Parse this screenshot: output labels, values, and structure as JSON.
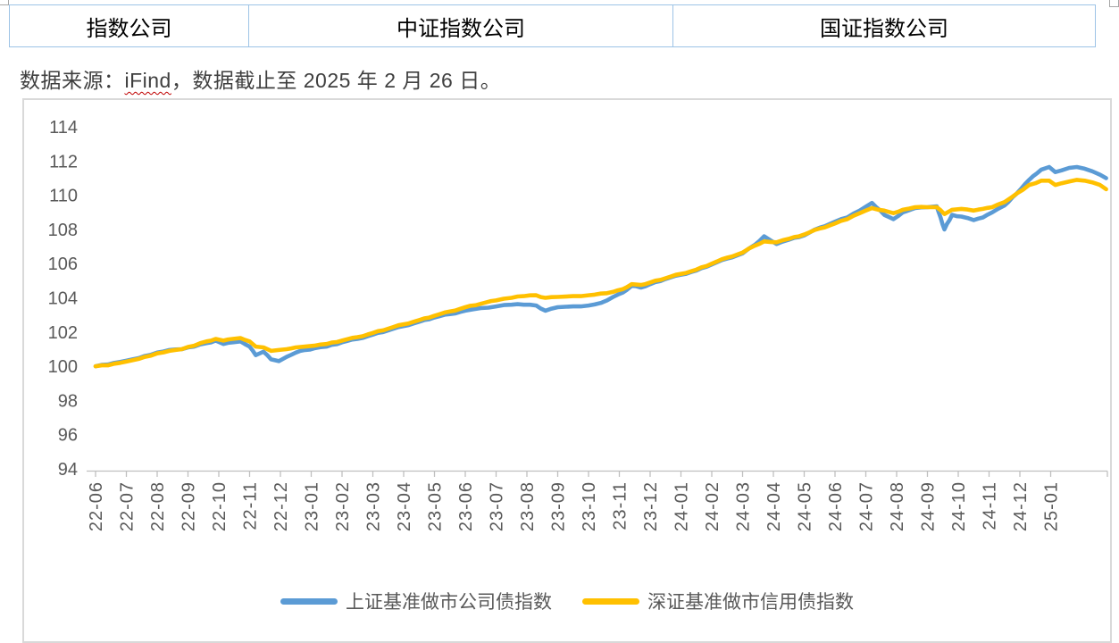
{
  "table": {
    "border_color": "#9DC3E6",
    "cells": [
      {
        "label": "指数公司"
      },
      {
        "label": "中证指数公司"
      },
      {
        "label": "国证指数公司"
      }
    ]
  },
  "source_note": {
    "prefix": "数据来源：",
    "highlight": "iFind",
    "suffix": "，数据截止至 2025 年 2 月 26 日。"
  },
  "chart_data": {
    "type": "line",
    "title": "",
    "xlabel": "",
    "ylabel": "",
    "ylim": [
      94,
      114
    ],
    "y_ticks": [
      94,
      96,
      98,
      100,
      102,
      104,
      106,
      108,
      110,
      112,
      114
    ],
    "x_tick_labels": [
      "22-06",
      "22-07",
      "22-08",
      "22-09",
      "22-10",
      "22-11",
      "22-12",
      "23-01",
      "23-02",
      "23-03",
      "23-04",
      "23-05",
      "23-06",
      "23-07",
      "23-08",
      "23-09",
      "23-10",
      "23-11",
      "23-12",
      "24-01",
      "24-02",
      "24-03",
      "24-04",
      "24-05",
      "24-06",
      "24-07",
      "24-08",
      "24-09",
      "24-10",
      "24-11",
      "24-12",
      "25-01"
    ],
    "grid": false,
    "legend_position": "bottom",
    "axis_color": "#BFBFBF",
    "tick_label_color": "#595959",
    "series": [
      {
        "name": "上证基准做市公司债指数",
        "color": "#5B9BD5",
        "points": [
          [
            0,
            100.0
          ],
          [
            0.4,
            100.1
          ],
          [
            0.8,
            100.25
          ],
          [
            1.2,
            100.4
          ],
          [
            1.6,
            100.6
          ],
          [
            2.0,
            100.8
          ],
          [
            2.4,
            100.95
          ],
          [
            2.8,
            101.0
          ],
          [
            3.2,
            101.15
          ],
          [
            3.6,
            101.35
          ],
          [
            3.9,
            101.5
          ],
          [
            4.15,
            101.3
          ],
          [
            4.45,
            101.4
          ],
          [
            4.7,
            101.45
          ],
          [
            5.0,
            101.15
          ],
          [
            5.2,
            100.65
          ],
          [
            5.45,
            100.85
          ],
          [
            5.7,
            100.4
          ],
          [
            5.95,
            100.3
          ],
          [
            6.2,
            100.55
          ],
          [
            6.5,
            100.8
          ],
          [
            6.8,
            100.95
          ],
          [
            7.1,
            101.05
          ],
          [
            7.5,
            101.15
          ],
          [
            8.0,
            101.4
          ],
          [
            8.5,
            101.6
          ],
          [
            9.0,
            101.85
          ],
          [
            9.5,
            102.1
          ],
          [
            10.0,
            102.35
          ],
          [
            10.5,
            102.6
          ],
          [
            11.0,
            102.85
          ],
          [
            11.5,
            103.05
          ],
          [
            12.0,
            103.25
          ],
          [
            12.5,
            103.4
          ],
          [
            13.0,
            103.5
          ],
          [
            13.5,
            103.6
          ],
          [
            13.9,
            103.6
          ],
          [
            14.3,
            103.55
          ],
          [
            14.6,
            103.25
          ],
          [
            15.0,
            103.45
          ],
          [
            15.5,
            103.5
          ],
          [
            16.0,
            103.55
          ],
          [
            16.4,
            103.7
          ],
          [
            16.8,
            104.05
          ],
          [
            17.1,
            104.3
          ],
          [
            17.4,
            104.7
          ],
          [
            17.7,
            104.6
          ],
          [
            18.0,
            104.8
          ],
          [
            18.5,
            105.1
          ],
          [
            19.0,
            105.35
          ],
          [
            19.5,
            105.6
          ],
          [
            20.0,
            105.95
          ],
          [
            20.5,
            106.3
          ],
          [
            21.0,
            106.6
          ],
          [
            21.4,
            107.1
          ],
          [
            21.7,
            107.6
          ],
          [
            22.1,
            107.15
          ],
          [
            22.5,
            107.4
          ],
          [
            23.0,
            107.65
          ],
          [
            23.5,
            108.1
          ],
          [
            24.0,
            108.45
          ],
          [
            24.4,
            108.7
          ],
          [
            24.8,
            109.1
          ],
          [
            25.2,
            109.55
          ],
          [
            25.6,
            108.85
          ],
          [
            25.9,
            108.6
          ],
          [
            26.2,
            109.0
          ],
          [
            26.6,
            109.25
          ],
          [
            27.0,
            109.3
          ],
          [
            27.3,
            109.35
          ],
          [
            27.55,
            108.0
          ],
          [
            27.8,
            108.85
          ],
          [
            28.1,
            108.75
          ],
          [
            28.5,
            108.55
          ],
          [
            28.8,
            108.7
          ],
          [
            29.1,
            109.0
          ],
          [
            29.5,
            109.4
          ],
          [
            29.9,
            110.1
          ],
          [
            30.3,
            110.9
          ],
          [
            30.7,
            111.5
          ],
          [
            30.95,
            111.65
          ],
          [
            31.15,
            111.35
          ],
          [
            31.35,
            111.45
          ],
          [
            31.6,
            111.6
          ],
          [
            31.85,
            111.65
          ],
          [
            32.1,
            111.55
          ],
          [
            32.35,
            111.4
          ],
          [
            32.6,
            111.2
          ],
          [
            32.8,
            111.0
          ]
        ]
      },
      {
        "name": "深证基准做市信用债指数",
        "color": "#FFC000",
        "points": [
          [
            0,
            100.0
          ],
          [
            0.4,
            100.05
          ],
          [
            0.8,
            100.2
          ],
          [
            1.2,
            100.35
          ],
          [
            1.6,
            100.55
          ],
          [
            2.0,
            100.75
          ],
          [
            2.4,
            100.9
          ],
          [
            2.8,
            101.0
          ],
          [
            3.2,
            101.2
          ],
          [
            3.6,
            101.45
          ],
          [
            3.9,
            101.6
          ],
          [
            4.15,
            101.5
          ],
          [
            4.45,
            101.6
          ],
          [
            4.7,
            101.65
          ],
          [
            5.0,
            101.45
          ],
          [
            5.2,
            101.15
          ],
          [
            5.45,
            101.1
          ],
          [
            5.7,
            100.9
          ],
          [
            5.95,
            100.95
          ],
          [
            6.2,
            101.0
          ],
          [
            6.5,
            101.1
          ],
          [
            6.8,
            101.15
          ],
          [
            7.1,
            101.2
          ],
          [
            7.5,
            101.3
          ],
          [
            8.0,
            101.5
          ],
          [
            8.5,
            101.7
          ],
          [
            9.0,
            101.95
          ],
          [
            9.5,
            102.2
          ],
          [
            10.0,
            102.45
          ],
          [
            10.5,
            102.7
          ],
          [
            11.0,
            102.95
          ],
          [
            11.5,
            103.2
          ],
          [
            12.0,
            103.45
          ],
          [
            12.5,
            103.65
          ],
          [
            13.0,
            103.85
          ],
          [
            13.5,
            104.0
          ],
          [
            13.9,
            104.1
          ],
          [
            14.3,
            104.15
          ],
          [
            14.6,
            104.0
          ],
          [
            15.0,
            104.05
          ],
          [
            15.5,
            104.1
          ],
          [
            16.0,
            104.15
          ],
          [
            16.4,
            104.25
          ],
          [
            16.8,
            104.35
          ],
          [
            17.1,
            104.5
          ],
          [
            17.4,
            104.8
          ],
          [
            17.7,
            104.75
          ],
          [
            18.0,
            104.9
          ],
          [
            18.5,
            105.15
          ],
          [
            19.0,
            105.4
          ],
          [
            19.5,
            105.65
          ],
          [
            20.0,
            106.0
          ],
          [
            20.5,
            106.35
          ],
          [
            21.0,
            106.65
          ],
          [
            21.4,
            107.05
          ],
          [
            21.7,
            107.3
          ],
          [
            22.1,
            107.25
          ],
          [
            22.5,
            107.45
          ],
          [
            23.0,
            107.7
          ],
          [
            23.5,
            108.05
          ],
          [
            24.0,
            108.35
          ],
          [
            24.4,
            108.6
          ],
          [
            24.8,
            108.95
          ],
          [
            25.2,
            109.25
          ],
          [
            25.6,
            109.1
          ],
          [
            25.9,
            108.95
          ],
          [
            26.2,
            109.15
          ],
          [
            26.6,
            109.3
          ],
          [
            27.0,
            109.3
          ],
          [
            27.3,
            109.3
          ],
          [
            27.55,
            108.9
          ],
          [
            27.8,
            109.15
          ],
          [
            28.1,
            109.2
          ],
          [
            28.5,
            109.1
          ],
          [
            28.8,
            109.2
          ],
          [
            29.1,
            109.3
          ],
          [
            29.5,
            109.6
          ],
          [
            29.9,
            110.1
          ],
          [
            30.3,
            110.6
          ],
          [
            30.7,
            110.85
          ],
          [
            30.95,
            110.85
          ],
          [
            31.15,
            110.6
          ],
          [
            31.35,
            110.7
          ],
          [
            31.6,
            110.8
          ],
          [
            31.85,
            110.9
          ],
          [
            32.1,
            110.85
          ],
          [
            32.35,
            110.75
          ],
          [
            32.6,
            110.6
          ],
          [
            32.8,
            110.35
          ]
        ]
      }
    ]
  }
}
